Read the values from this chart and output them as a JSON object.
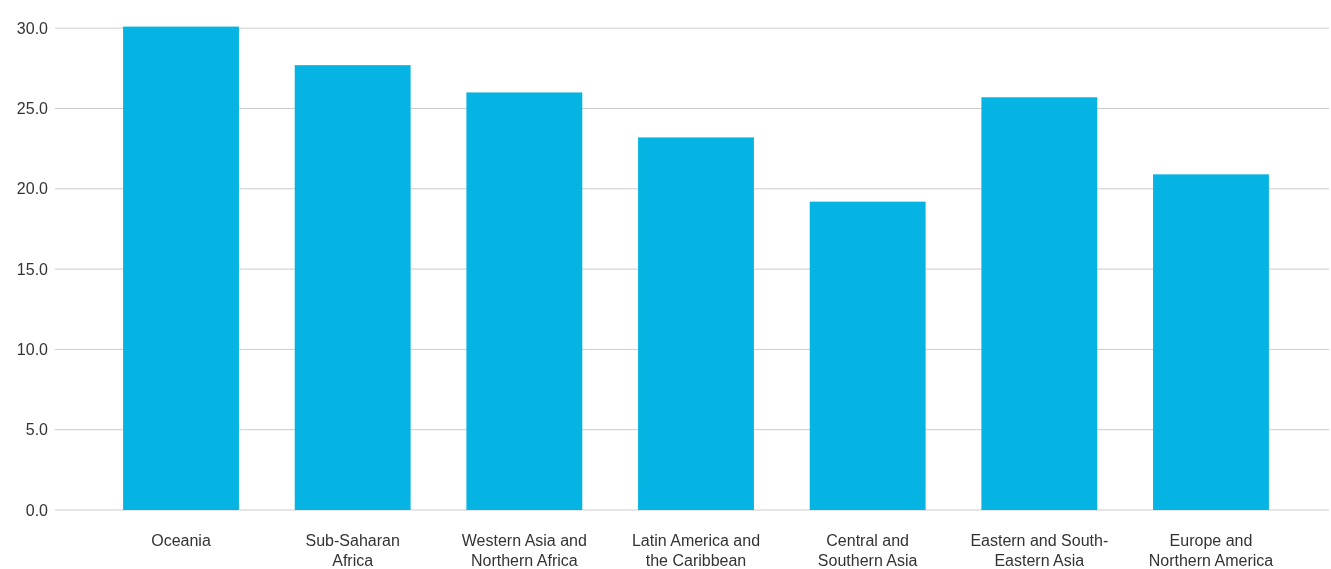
{
  "chart_data": {
    "type": "bar",
    "categories": [
      "Oceania",
      "Sub-Saharan Africa",
      "Western Asia and Northern Africa",
      "Latin America and the Caribbean",
      "Central and Southern Asia",
      "Eastern and South-Eastern Asia",
      "Europe and Northern America"
    ],
    "values": [
      30.1,
      27.7,
      26.0,
      23.2,
      19.2,
      25.7,
      20.9
    ],
    "color": "#05b4e3",
    "ylim": [
      0,
      30.2
    ],
    "yticks": [
      {
        "value": 0,
        "label": "0.0"
      },
      {
        "value": 5,
        "label": "5.0"
      },
      {
        "value": 10,
        "label": "10.0"
      },
      {
        "value": 15,
        "label": "15.0"
      },
      {
        "value": 20,
        "label": "20.0"
      },
      {
        "value": 25,
        "label": "25.0"
      },
      {
        "value": 30,
        "label": "30.0"
      }
    ],
    "grid": "y"
  }
}
